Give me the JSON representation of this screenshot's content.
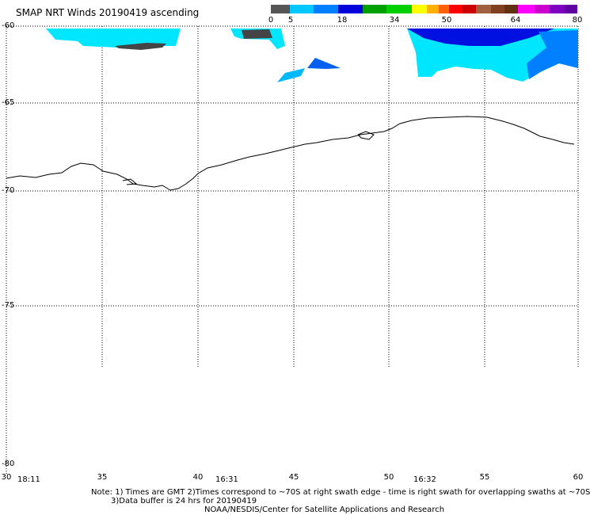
{
  "title": "SMAP NRT Winds 20190419 ascending",
  "colorbar": {
    "ticks": [
      "0",
      "5",
      "18",
      "34",
      "50",
      "64",
      "80"
    ],
    "colors": [
      "#555555",
      "#00c8ff",
      "#0080ff",
      "#0000dd",
      "#00a000",
      "#00d000",
      "#ffff00",
      "#ffb000",
      "#ff6000",
      "#ff0000",
      "#cc0000",
      "#a06040",
      "#804020",
      "#603010",
      "#ff00ff",
      "#cc00cc",
      "#8000c0",
      "#6000a0"
    ]
  },
  "lat_labels": [
    "-60",
    "-65",
    "-70",
    "-75",
    "-80"
  ],
  "lon_labels": [
    "30",
    "35",
    "40",
    "45",
    "50",
    "55",
    "60"
  ],
  "times": [
    "18:11",
    "16:31",
    "16:32"
  ],
  "notes": {
    "line1": "Note: 1) Times are GMT 2)Times correspond to ~70S at right swath edge - time is right swath for overlapping swaths at ~70S",
    "line2": "3)Data buffer is 24 hrs for 20190419",
    "line3": "NOAA/NESDIS/Center for Satellite Applications and Research"
  },
  "wind_colors": {
    "light": "#00e6ff",
    "mid": "#00b8ff",
    "blue": "#0060f0",
    "deep": "#0010e0",
    "land": "#444444"
  }
}
